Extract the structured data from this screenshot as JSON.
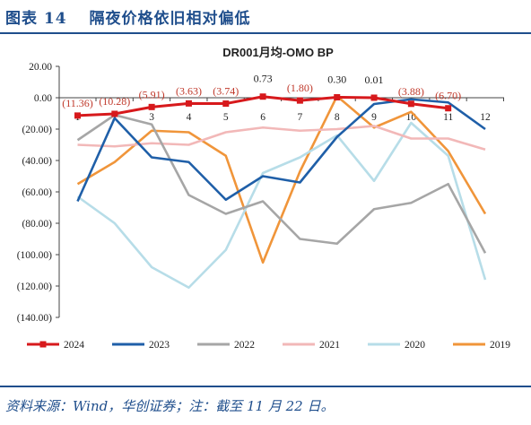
{
  "figure": {
    "title": "图表 14　 隔夜价格依旧相对偏低",
    "source_note": "资料来源：Wind，华创证券；注：截至 11 月 22 日。"
  },
  "chart_data": {
    "type": "line",
    "title": "DR001月均-OMO BP",
    "x": [
      1,
      2,
      3,
      4,
      5,
      6,
      7,
      8,
      9,
      10,
      11,
      12
    ],
    "x_tick_labels": [
      "1",
      "2",
      "3",
      "4",
      "5",
      "6",
      "7",
      "8",
      "9",
      "10",
      "11",
      "12"
    ],
    "ylim": [
      -140,
      20
    ],
    "y_ticks": [
      20,
      0,
      -20,
      -40,
      -60,
      -80,
      -100,
      -120,
      -140
    ],
    "y_tick_labels": [
      "20.00",
      "0.00",
      "(20.00)",
      "(40.00)",
      "(60.00)",
      "(80.00)",
      "(100.00)",
      "(120.00)",
      "(140.00)"
    ],
    "legend_position": "bottom",
    "series": [
      {
        "name": "2024",
        "color": "#d7191c",
        "markers": true,
        "values": [
          -11.36,
          -10.28,
          -5.91,
          -3.63,
          -3.74,
          0.73,
          -1.8,
          0.3,
          0.01,
          -3.88,
          -6.7,
          null
        ],
        "data_labels": [
          "(11.36)",
          "(10.28)",
          "(5.91)",
          "(3.63)",
          "(3.74)",
          "0.73",
          "(1.80)",
          "0.30",
          "0.01",
          "(3.88)",
          "(6.70)",
          ""
        ]
      },
      {
        "name": "2023",
        "color": "#1f5fa8",
        "markers": false,
        "values": [
          -66,
          -13,
          -38,
          -41,
          -65,
          -50,
          -54,
          -25,
          -4,
          -1,
          -3,
          -20
        ]
      },
      {
        "name": "2022",
        "color": "#a6a6a6",
        "markers": false,
        "values": [
          -27,
          -11,
          -17,
          -62,
          -74,
          -66,
          -90,
          -93,
          -71,
          -67,
          -55,
          -99
        ]
      },
      {
        "name": "2021",
        "color": "#f2b8b8",
        "markers": false,
        "values": [
          -30,
          -31,
          -29,
          -30,
          -22,
          -19,
          -21,
          -20,
          -18,
          -26,
          -26,
          -33
        ]
      },
      {
        "name": "2020",
        "color": "#b7dde8",
        "markers": false,
        "values": [
          -63,
          -80,
          -108,
          -121,
          -97,
          -48,
          -38,
          -24,
          -53,
          -16,
          -37,
          -116
        ]
      },
      {
        "name": "2019",
        "color": "#f0953a",
        "markers": false,
        "values": [
          -55,
          -41,
          -21,
          -22,
          -37,
          -105,
          -47,
          1,
          -19,
          -9,
          -34,
          -74
        ]
      }
    ]
  }
}
